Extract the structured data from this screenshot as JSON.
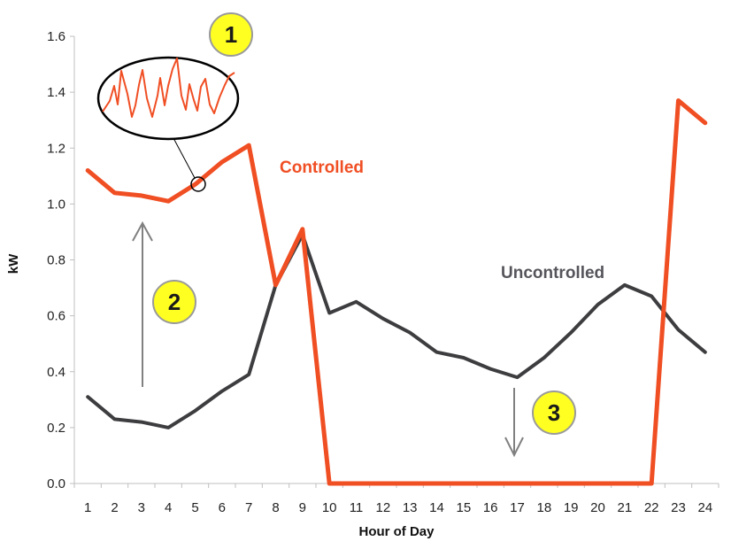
{
  "chart_data": {
    "type": "line",
    "xlabel": "Hour of Day",
    "ylabel": "kW",
    "ylim": [
      0,
      1.6
    ],
    "yticks": [
      "0.0",
      "0.2",
      "0.4",
      "0.6",
      "0.8",
      "1.0",
      "1.2",
      "1.4",
      "1.6"
    ],
    "categories": [
      "1",
      "2",
      "3",
      "4",
      "5",
      "6",
      "7",
      "8",
      "9",
      "10",
      "11",
      "12",
      "13",
      "14",
      "15",
      "16",
      "17",
      "18",
      "19",
      "20",
      "21",
      "22",
      "23",
      "24"
    ],
    "grid": false,
    "series": [
      {
        "name": "Controlled",
        "color": "#f04e23",
        "values": [
          1.12,
          1.04,
          1.03,
          1.01,
          1.07,
          1.15,
          1.21,
          0.71,
          0.91,
          0.0,
          0.0,
          0.0,
          0.0,
          0.0,
          0.0,
          0.0,
          0.0,
          0.0,
          0.0,
          0.0,
          0.0,
          0.0,
          1.37,
          1.29
        ]
      },
      {
        "name": "Uncontrolled",
        "color": "#3d3d40",
        "values": [
          0.31,
          0.23,
          0.22,
          0.2,
          0.26,
          0.33,
          0.39,
          0.71,
          0.89,
          0.61,
          0.65,
          0.59,
          0.54,
          0.47,
          0.45,
          0.41,
          0.38,
          0.45,
          0.54,
          0.64,
          0.71,
          0.67,
          0.55,
          0.47
        ]
      }
    ],
    "annotations": {
      "badge1": "1",
      "badge2": "2",
      "badge3": "3",
      "badge_color": "#ffff22",
      "arrow_color": "#808080"
    }
  }
}
